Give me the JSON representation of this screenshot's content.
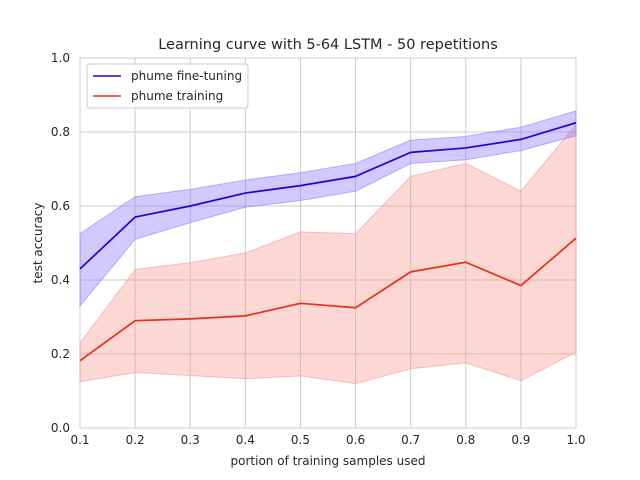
{
  "chart_data": {
    "type": "line",
    "title": "Learning curve with 5-64 LSTM - 50 repetitions",
    "xlabel": "portion of training samples used",
    "ylabel": "test accuracy",
    "xlim": [
      0.1,
      1.0
    ],
    "ylim": [
      0.0,
      1.0
    ],
    "x": [
      0.1,
      0.2,
      0.3,
      0.4,
      0.5,
      0.6,
      0.7,
      0.8,
      0.9,
      1.0
    ],
    "xticks": [
      "0.1",
      "0.2",
      "0.3",
      "0.4",
      "0.5",
      "0.6",
      "0.7",
      "0.8",
      "0.9",
      "1.0"
    ],
    "yticks": [
      "0.0",
      "0.2",
      "0.4",
      "0.6",
      "0.8",
      "1.0"
    ],
    "grid": true,
    "legend_position": "top-left",
    "series": [
      {
        "name": "phume fine-tuning",
        "color": "#2000dd",
        "fill_color": "#8a73ff",
        "values": [
          0.43,
          0.57,
          0.6,
          0.635,
          0.655,
          0.68,
          0.745,
          0.757,
          0.78,
          0.825
        ],
        "lower": [
          0.33,
          0.51,
          0.555,
          0.597,
          0.615,
          0.64,
          0.715,
          0.725,
          0.75,
          0.79
        ],
        "upper": [
          0.525,
          0.625,
          0.645,
          0.67,
          0.69,
          0.715,
          0.778,
          0.788,
          0.813,
          0.857
        ]
      },
      {
        "name": "phume training",
        "color": "#e8311a",
        "fill_color": "#f7968c",
        "values": [
          0.182,
          0.29,
          0.295,
          0.303,
          0.337,
          0.325,
          0.422,
          0.448,
          0.385,
          0.513
        ],
        "lower": [
          0.125,
          0.15,
          0.142,
          0.133,
          0.141,
          0.12,
          0.16,
          0.176,
          0.128,
          0.205
        ],
        "upper": [
          0.23,
          0.428,
          0.447,
          0.473,
          0.53,
          0.525,
          0.68,
          0.715,
          0.64,
          0.82
        ]
      }
    ]
  }
}
